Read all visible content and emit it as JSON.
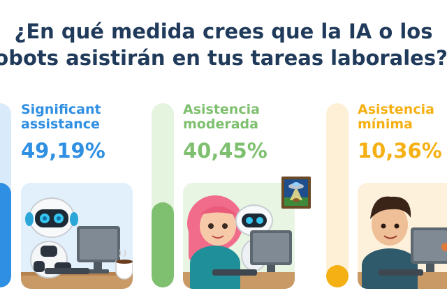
{
  "title": {
    "line1": "¿En qué medida crees que la IA o los",
    "line2": "robots asistirán en tus tareas laborales?"
  },
  "columns": [
    {
      "line1": "Significant",
      "line2": "assistance",
      "percent_label": "49,19%",
      "percent": 49.19,
      "color": "#2f8fe3",
      "track_color": "#d9ebfb",
      "icon": "robot-at-desk"
    },
    {
      "line1": "Asistencia",
      "line2": "moderada",
      "percent_label": "40,45%",
      "percent": 40.45,
      "color": "#7ec06f",
      "track_color": "#e4f4df",
      "icon": "woman-and-robot-at-desk"
    },
    {
      "line1": "Asistencia",
      "line2": "mínima",
      "percent_label": "10,36%",
      "percent": 10.36,
      "color": "#f5b014",
      "track_color": "#fdf0d6",
      "icon": "man-at-desk"
    }
  ],
  "ufo_picture_icon": "ufo-picture-icon",
  "coffee_icon": "coffee-cup-icon"
}
